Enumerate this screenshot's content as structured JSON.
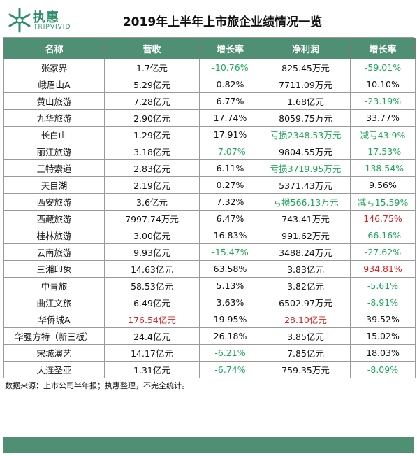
{
  "brand": {
    "name_zh": "执惠",
    "name_en": "TRIPVIVID"
  },
  "title": "2019年上半年上市旅企业绩情况一览",
  "columns": [
    "名称",
    "营收",
    "增长率",
    "净利润",
    "增长率"
  ],
  "rows": [
    {
      "name": "张家界",
      "revenue": "1.7亿元",
      "rev_growth": "-10.76%",
      "profit": "825.45万元",
      "profit_growth": "-59.01%"
    },
    {
      "name": "峨眉山A",
      "revenue": "5.29亿元",
      "rev_growth": "0.82%",
      "profit": "7711.09万元",
      "profit_growth": "10.10%"
    },
    {
      "name": "黄山旅游",
      "revenue": "7.28亿元",
      "rev_growth": "6.77%",
      "profit": "1.68亿元",
      "profit_growth": "-23.19%"
    },
    {
      "name": "九华旅游",
      "revenue": "2.90亿元",
      "rev_growth": "17.74%",
      "profit": "8059.75万元",
      "profit_growth": "33.77%"
    },
    {
      "name": "长白山",
      "revenue": "1.29亿元",
      "rev_growth": "17.91%",
      "profit": "亏损2348.53万元",
      "profit_growth": "减亏43.9%"
    },
    {
      "name": "丽江旅游",
      "revenue": "3.18亿元",
      "rev_growth": "-7.07%",
      "profit": "9804.55万元",
      "profit_growth": "-17.53%"
    },
    {
      "name": "三特索道",
      "revenue": "2.83亿元",
      "rev_growth": "6.11%",
      "profit": "亏损3719.95万元",
      "profit_growth": "-138.54%"
    },
    {
      "name": "天目湖",
      "revenue": "2.19亿元",
      "rev_growth": "0.27%",
      "profit": "5371.43万元",
      "profit_growth": "9.56%"
    },
    {
      "name": "西安旅游",
      "revenue": "3.6亿元",
      "rev_growth": "7.32%",
      "profit": "亏损566.13万元",
      "profit_growth": "减亏15.59%"
    },
    {
      "name": "西藏旅游",
      "revenue": "7997.74万元",
      "rev_growth": "6.47%",
      "profit": "743.41万元",
      "profit_growth": "146.75%"
    },
    {
      "name": "桂林旅游",
      "revenue": "3.00亿元",
      "rev_growth": "16.83%",
      "profit": "991.62万元",
      "profit_growth": "-66.16%"
    },
    {
      "name": "云南旅游",
      "revenue": "9.93亿元",
      "rev_growth": "-15.47%",
      "profit": "3488.24万元",
      "profit_growth": "-27.62%"
    },
    {
      "name": "三湘印象",
      "revenue": "14.63亿元",
      "rev_growth": "63.58%",
      "profit": "3.83亿元",
      "profit_growth": "934.81%"
    },
    {
      "name": "中青旅",
      "revenue": "58.53亿元",
      "rev_growth": "5.13%",
      "profit": "3.82亿元",
      "profit_growth": "-5.61%"
    },
    {
      "name": "曲江文旅",
      "revenue": "6.49亿元",
      "rev_growth": "3.63%",
      "profit": "6502.97万元",
      "profit_growth": "-8.91%"
    },
    {
      "name": "华侨城A",
      "revenue": "176.54亿元",
      "rev_growth": "19.95%",
      "profit": "28.10亿元",
      "profit_growth": "39.52%"
    },
    {
      "name": "华强方特（新三板）",
      "revenue": "24.4亿元",
      "rev_growth": "26.18%",
      "profit": "3.85亿元",
      "profit_growth": "15.02%"
    },
    {
      "name": "宋城演艺",
      "revenue": "14.17亿元",
      "rev_growth": "-6.21%",
      "profit": "7.85亿元",
      "profit_growth": "18.03%"
    },
    {
      "name": "大连圣亚",
      "revenue": "1.31亿元",
      "rev_growth": "-6.74%",
      "profit": "759.35万元",
      "profit_growth": "-8.09%"
    }
  ],
  "highlight": {
    "green": [
      "0.rev_growth",
      "0.profit_growth",
      "2.profit_growth",
      "4.profit",
      "4.profit_growth",
      "5.rev_growth",
      "5.profit_growth",
      "6.profit",
      "6.profit_growth",
      "8.profit",
      "8.profit_growth",
      "10.profit_growth",
      "11.rev_growth",
      "11.profit_growth",
      "13.profit_growth",
      "14.profit_growth",
      "17.rev_growth",
      "18.rev_growth",
      "18.profit_growth"
    ],
    "red": [
      "9.profit_growth",
      "12.profit_growth",
      "15.revenue",
      "15.profit"
    ]
  },
  "colors": {
    "header_bg": "#4f8f73",
    "positive": "#e02020",
    "negative": "#1fa85a"
  },
  "source": "数据来源：上市公司半年报；执惠整理，不完全统计。"
}
